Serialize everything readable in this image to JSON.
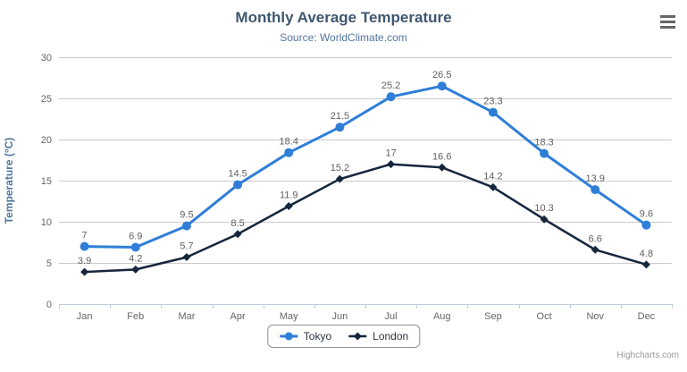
{
  "header": {
    "title": "Monthly Average Temperature",
    "subtitle": "Source: WorldClimate.com"
  },
  "chart_data": {
    "type": "line",
    "title": "Monthly Average Temperature",
    "subtitle": "Source: WorldClimate.com",
    "categories": [
      "Jan",
      "Feb",
      "Mar",
      "Apr",
      "May",
      "Jun",
      "Jul",
      "Aug",
      "Sep",
      "Oct",
      "Nov",
      "Dec"
    ],
    "series": [
      {
        "name": "Tokyo",
        "color": "#2f7ed8",
        "marker": "circle",
        "values": [
          7,
          6.9,
          9.5,
          14.5,
          18.4,
          21.5,
          25.2,
          26.5,
          23.3,
          18.3,
          13.9,
          9.6
        ]
      },
      {
        "name": "London",
        "color": "#15263d",
        "marker": "diamond",
        "values": [
          3.9,
          4.2,
          5.7,
          8.5,
          11.9,
          15.2,
          17,
          16.6,
          14.2,
          10.3,
          6.6,
          4.8
        ]
      }
    ],
    "xlabel": "",
    "ylabel": "Temperature (°C)",
    "ylim": [
      0,
      30
    ],
    "ytick_interval": 5,
    "yticks": [
      0,
      5,
      10,
      15,
      20,
      25,
      30
    ],
    "grid": true,
    "data_labels": true,
    "legend_position": "bottom"
  },
  "colors": {
    "background": "#ffffff",
    "title": "#3e576f",
    "subtitle": "#55759e",
    "axis_title": "#4d759e",
    "axis_labels": "#666666",
    "gridline": "#cccccc",
    "axis_line": "#c0d0e0",
    "data_label": "#606060",
    "legend_border": "#909090",
    "legend_text": "#2a3342",
    "credits": "#999999",
    "menu_icon": "#666666"
  },
  "menu": {
    "icon": "hamburger-icon"
  },
  "credits": {
    "label": "Highcharts.com"
  }
}
